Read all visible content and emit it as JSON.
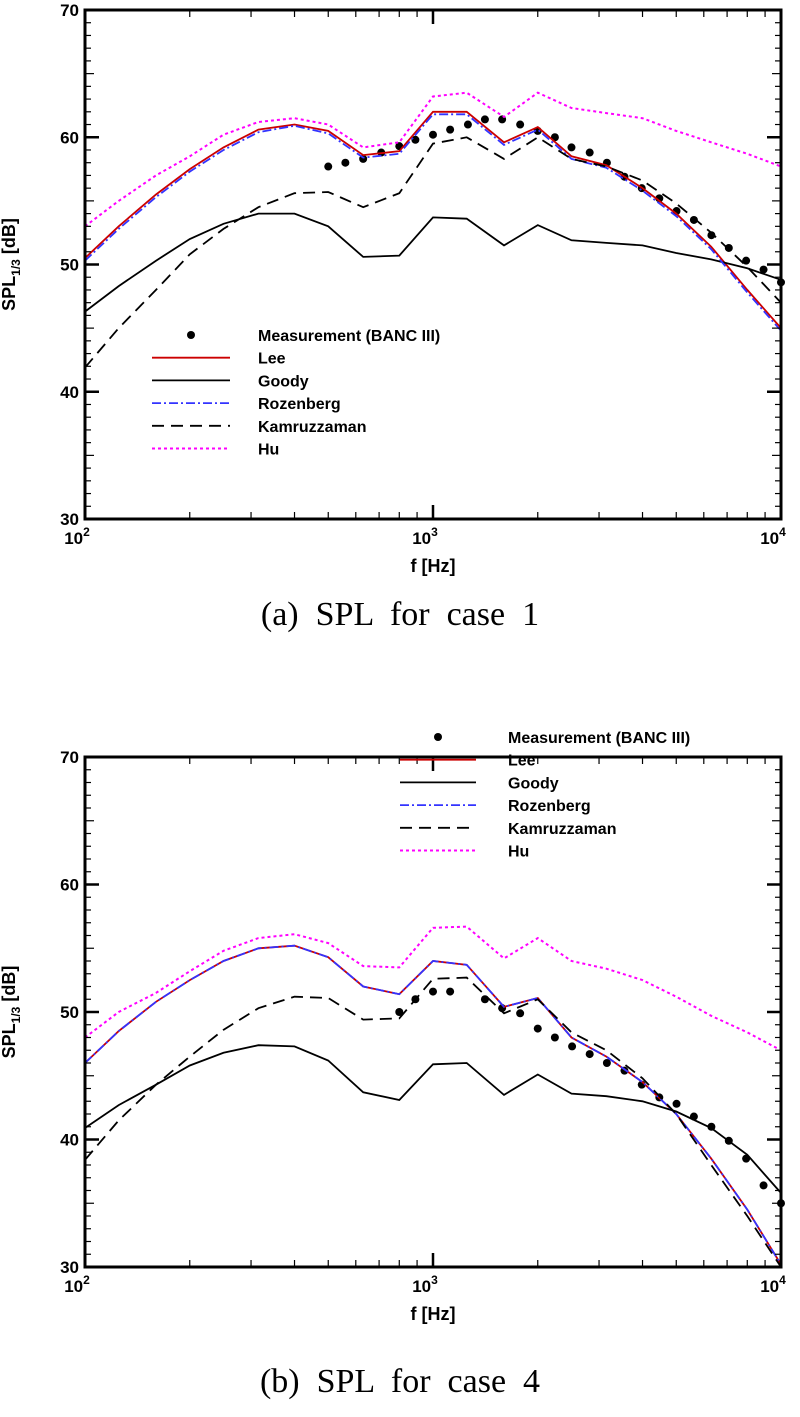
{
  "chart_data": [
    {
      "type": "line",
      "caption": "(a)  SPL  for  case  1",
      "xlabel": "f [Hz]",
      "ylabel": "SPL",
      "ylabel_sub": "1/3",
      "ylabel_unit": " [dB]",
      "xscale": "log",
      "xlim": [
        100,
        10000
      ],
      "ylim": [
        30,
        70
      ],
      "xticks": [
        {
          "base": "10",
          "exp": "2"
        },
        {
          "base": "10",
          "exp": "3"
        },
        {
          "base": "10",
          "exp": "4"
        }
      ],
      "yticks": [
        "30",
        "40",
        "50",
        "60",
        "70"
      ],
      "grid": false,
      "legend_position": "lower-left",
      "x": [
        100,
        125,
        160,
        200,
        250,
        315,
        400,
        500,
        630,
        800,
        1000,
        1250,
        1600,
        2000,
        2500,
        3150,
        4000,
        5000,
        6300,
        8000,
        10000
      ],
      "series": [
        {
          "name": "Measurement (BANC III)",
          "style": "markers",
          "color": "#000000",
          "x": [
            500,
            560,
            630,
            710,
            800,
            890,
            1000,
            1120,
            1260,
            1410,
            1580,
            1780,
            2000,
            2240,
            2500,
            2820,
            3160,
            3550,
            3980,
            4470,
            5010,
            5620,
            6310,
            7080,
            7940,
            8910,
            10000
          ],
          "values": [
            57.7,
            58.0,
            58.3,
            58.8,
            59.3,
            59.8,
            60.2,
            60.6,
            61.0,
            61.4,
            61.4,
            61.0,
            60.5,
            60.0,
            59.2,
            58.8,
            58.0,
            56.9,
            56.0,
            55.2,
            54.2,
            53.5,
            52.3,
            51.3,
            50.3,
            49.6,
            48.6
          ]
        },
        {
          "name": "Lee",
          "style": "solid",
          "color": "#cc0000",
          "values": [
            50.5,
            53.0,
            55.5,
            57.5,
            59.2,
            60.6,
            61.0,
            60.5,
            58.6,
            58.9,
            62.0,
            62.0,
            59.6,
            60.8,
            58.5,
            57.8,
            56.0,
            54.0,
            51.4,
            48.0,
            45.0
          ]
        },
        {
          "name": "Goody",
          "style": "solid",
          "color": "#000000",
          "values": [
            46.3,
            48.3,
            50.3,
            52.0,
            53.2,
            54.0,
            54.0,
            53.0,
            50.6,
            50.7,
            53.7,
            53.6,
            51.5,
            53.1,
            51.9,
            51.7,
            51.5,
            50.9,
            50.4,
            49.7,
            48.8
          ]
        },
        {
          "name": "Rozenberg",
          "style": "dashdot",
          "color": "#3333ff",
          "values": [
            50.3,
            52.8,
            55.3,
            57.3,
            59.0,
            60.4,
            60.9,
            60.3,
            58.4,
            58.7,
            61.8,
            61.8,
            59.4,
            60.6,
            58.3,
            57.6,
            55.8,
            53.8,
            51.2,
            47.8,
            44.8
          ]
        },
        {
          "name": "Kamruzzaman",
          "style": "dashed",
          "color": "#000000",
          "values": [
            41.9,
            45.0,
            48.0,
            50.8,
            52.8,
            54.5,
            55.6,
            55.7,
            54.5,
            55.6,
            59.5,
            60.0,
            58.3,
            60.0,
            58.3,
            57.7,
            56.6,
            54.8,
            52.5,
            49.8,
            47.0
          ]
        },
        {
          "name": "Hu",
          "style": "dotted",
          "color": "#ff00ff",
          "values": [
            53.0,
            55.0,
            57.0,
            58.5,
            60.2,
            61.2,
            61.5,
            61.0,
            59.2,
            59.6,
            63.2,
            63.5,
            61.6,
            63.5,
            62.3,
            61.9,
            61.5,
            60.5,
            59.6,
            58.7,
            57.7
          ]
        }
      ]
    },
    {
      "type": "line",
      "caption": "(b)  SPL  for  case  4",
      "xlabel": "f [Hz]",
      "ylabel": "SPL",
      "ylabel_sub": "1/3",
      "ylabel_unit": " [dB]",
      "xscale": "log",
      "xlim": [
        100,
        10000
      ],
      "ylim": [
        30,
        70
      ],
      "xticks": [
        {
          "base": "10",
          "exp": "2"
        },
        {
          "base": "10",
          "exp": "3"
        },
        {
          "base": "10",
          "exp": "4"
        }
      ],
      "yticks": [
        "30",
        "40",
        "50",
        "60",
        "70"
      ],
      "grid": false,
      "legend_position": "top-right",
      "x": [
        100,
        125,
        160,
        200,
        250,
        315,
        400,
        500,
        630,
        800,
        1000,
        1250,
        1600,
        2000,
        2500,
        3150,
        4000,
        5000,
        6300,
        8000,
        10000
      ],
      "series": [
        {
          "name": "Measurement (BANC III)",
          "style": "markers",
          "color": "#000000",
          "x": [
            800,
            890,
            1000,
            1120,
            1410,
            1580,
            1780,
            2000,
            2240,
            2510,
            2820,
            3160,
            3550,
            3980,
            4470,
            5010,
            5620,
            6310,
            7080,
            7940,
            8910,
            10000
          ],
          "values": [
            50.0,
            51.0,
            51.6,
            51.6,
            51.0,
            50.3,
            49.9,
            48.7,
            48.0,
            47.3,
            46.7,
            46.0,
            45.4,
            44.3,
            43.3,
            42.8,
            41.8,
            41.0,
            39.9,
            38.5,
            36.4,
            35.0
          ]
        },
        {
          "name": "Lee",
          "style": "solid",
          "color": "#cc0000",
          "values": [
            46.0,
            48.5,
            50.8,
            52.5,
            54.0,
            55.0,
            55.2,
            54.3,
            52.0,
            51.4,
            54.0,
            53.7,
            50.4,
            51.1,
            48.0,
            46.5,
            44.5,
            42.0,
            38.5,
            34.5,
            30.2
          ]
        },
        {
          "name": "Goody",
          "style": "solid",
          "color": "#000000",
          "values": [
            40.9,
            42.7,
            44.3,
            45.8,
            46.8,
            47.4,
            47.3,
            46.2,
            43.7,
            43.1,
            45.9,
            46.0,
            43.5,
            45.1,
            43.6,
            43.4,
            43.0,
            42.2,
            40.9,
            38.8,
            35.8
          ]
        },
        {
          "name": "Rozenberg",
          "style": "dashdot",
          "color": "#3333ff",
          "values": [
            46.0,
            48.5,
            50.8,
            52.5,
            54.0,
            55.0,
            55.2,
            54.3,
            52.0,
            51.4,
            54.0,
            53.7,
            50.4,
            51.1,
            48.0,
            46.5,
            44.5,
            42.0,
            38.5,
            34.5,
            30.2
          ]
        },
        {
          "name": "Kamruzzaman",
          "style": "dashed",
          "color": "#000000",
          "values": [
            38.4,
            41.5,
            44.3,
            46.5,
            48.6,
            50.3,
            51.2,
            51.1,
            49.4,
            49.5,
            52.6,
            52.7,
            49.9,
            51.0,
            48.4,
            47.0,
            44.8,
            42.0,
            38.0,
            34.0,
            30.0
          ]
        },
        {
          "name": "Hu",
          "style": "dotted",
          "color": "#ff00ff",
          "values": [
            48.0,
            50.0,
            51.5,
            53.2,
            54.8,
            55.8,
            56.1,
            55.4,
            53.6,
            53.5,
            56.6,
            56.7,
            54.2,
            55.8,
            54.0,
            53.4,
            52.5,
            51.2,
            49.7,
            48.4,
            47.0
          ]
        }
      ]
    }
  ]
}
